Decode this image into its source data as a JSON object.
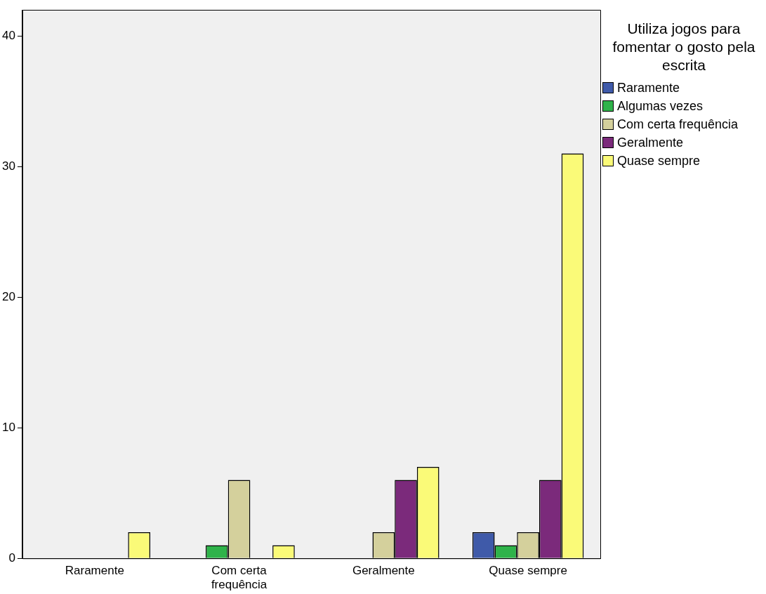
{
  "chart_data": {
    "type": "bar",
    "legend_title": "Utiliza jogos para fomentar o gosto pela escrita",
    "categories": [
      "Raramente",
      "Com certa frequência",
      "Geralmente",
      "Quase sempre"
    ],
    "series": [
      {
        "name": "Raramente",
        "color": "#3f5aa9",
        "values": [
          0,
          0,
          0,
          2
        ]
      },
      {
        "name": "Algumas vezes",
        "color": "#2fb34a",
        "values": [
          0,
          1,
          0,
          1
        ]
      },
      {
        "name": "Com certa frequência",
        "color": "#d4d09c",
        "values": [
          0,
          6,
          2,
          2
        ]
      },
      {
        "name": "Geralmente",
        "color": "#7b2a7b",
        "values": [
          0,
          0,
          6,
          6
        ]
      },
      {
        "name": "Quase sempre",
        "color": "#fafa78",
        "values": [
          2,
          1,
          7,
          31
        ]
      }
    ],
    "ylim": [
      0,
      42
    ],
    "yticks": [
      0,
      10,
      20,
      30,
      40
    ],
    "grid": false,
    "legend": "top right"
  }
}
